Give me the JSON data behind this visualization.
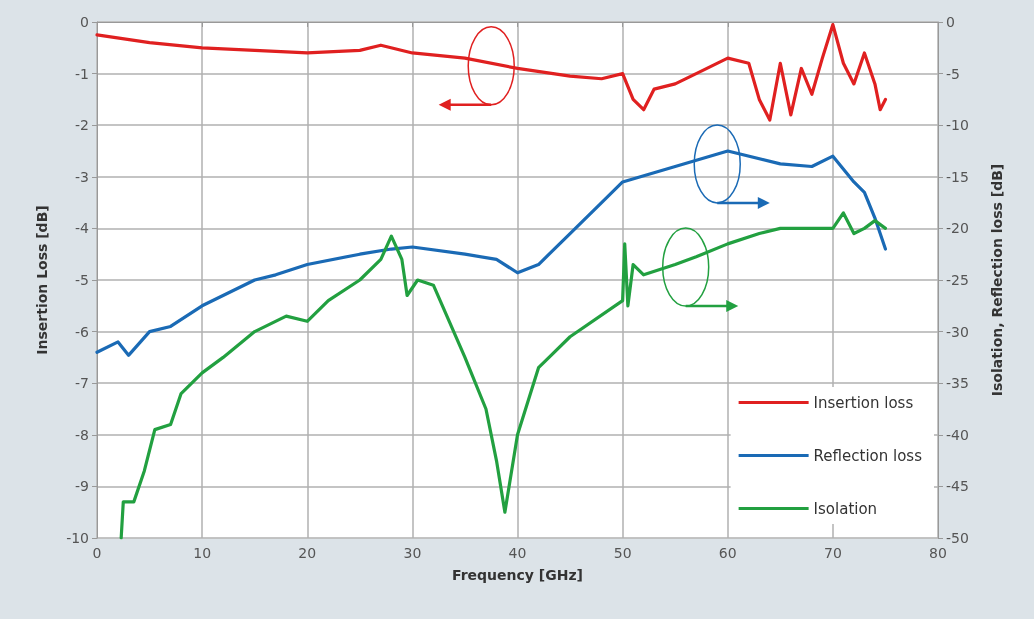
{
  "chart_data": {
    "type": "line",
    "xlabel": "Frequency [GHz]",
    "ylabel": "Insertion Loss [dB]",
    "y2label": "Isolation, Reflection loss [dB]",
    "xlim": [
      0,
      80
    ],
    "xticks": [
      0,
      10,
      20,
      30,
      40,
      50,
      60,
      70,
      80
    ],
    "ylim": [
      -10,
      0
    ],
    "yticks": [
      -10,
      -9,
      -8,
      -7,
      -6,
      -5,
      -4,
      -3,
      -2,
      -1,
      0
    ],
    "y2lim": [
      -50,
      0
    ],
    "y2ticks": [
      -50,
      -45,
      -40,
      -35,
      -30,
      -25,
      -20,
      -15,
      -10,
      -5,
      0
    ],
    "grid": true,
    "legend": "bottom right",
    "marker": "none",
    "line_style": "solid",
    "series": [
      {
        "name": "Insertion loss",
        "color": "#e02020",
        "axis": "y",
        "x": [
          0,
          5,
          10,
          15,
          20,
          25,
          27,
          30,
          35,
          40,
          45,
          48,
          50,
          51,
          52,
          53,
          55,
          57,
          60,
          62,
          63,
          64,
          65,
          66,
          67,
          68,
          69,
          70,
          71,
          72,
          73,
          74,
          74.5,
          75
        ],
        "values": [
          -0.25,
          -0.4,
          -0.5,
          -0.55,
          -0.6,
          -0.55,
          -0.45,
          -0.6,
          -0.7,
          -0.9,
          -1.05,
          -1.1,
          -1.0,
          -1.5,
          -1.7,
          -1.3,
          -1.2,
          -1.0,
          -0.7,
          -0.8,
          -1.5,
          -1.9,
          -0.8,
          -1.8,
          -0.9,
          -1.4,
          -0.7,
          -0.05,
          -0.8,
          -1.2,
          -0.6,
          -1.2,
          -1.7,
          -1.5
        ]
      },
      {
        "name": "Reflection loss",
        "color": "#1a6ab5",
        "axis": "y2",
        "x": [
          0,
          2,
          3,
          5,
          7,
          10,
          15,
          17,
          20,
          25,
          28,
          30,
          35,
          38,
          40,
          42,
          45,
          48,
          50,
          55,
          60,
          65,
          68,
          70,
          72,
          73,
          74,
          75
        ],
        "values": [
          -32,
          -31,
          -32.3,
          -30,
          -29.5,
          -27.5,
          -25,
          -24.5,
          -23.5,
          -22.5,
          -22,
          -21.8,
          -22.5,
          -23,
          -24.3,
          -23.5,
          -20.5,
          -17.5,
          -15.5,
          -14,
          -12.5,
          -13.75,
          -14,
          -13,
          -15.5,
          -16.5,
          -19,
          -22
        ]
      },
      {
        "name": "Isolation",
        "color": "#22a040",
        "axis": "y2",
        "x": [
          2.3,
          2.5,
          3.5,
          4.5,
          5.5,
          7,
          8,
          10,
          12,
          15,
          18,
          20,
          22,
          25,
          27,
          28,
          29,
          29.5,
          30.5,
          32,
          35,
          37,
          38,
          38.8,
          40,
          42,
          43,
          45,
          50,
          50.2,
          50.5,
          51,
          52,
          55,
          57,
          60,
          63,
          65,
          68,
          70,
          71,
          72,
          73,
          74,
          75
        ],
        "values": [
          -50,
          -46.5,
          -46.5,
          -43.5,
          -39.5,
          -39,
          -36,
          -34,
          -32.5,
          -30,
          -28.5,
          -29,
          -27,
          -25,
          -23,
          -20.75,
          -23,
          -26.5,
          -25,
          -25.5,
          -32.5,
          -37.5,
          -42.5,
          -47.5,
          -40,
          -33.5,
          -32.5,
          -30.5,
          -27,
          -21.5,
          -27.5,
          -23.5,
          -24.5,
          -23.5,
          -22.75,
          -21.5,
          -20.5,
          -20,
          -20,
          -20,
          -18.5,
          -20.5,
          -20,
          -19.25,
          -20
        ]
      }
    ]
  }
}
